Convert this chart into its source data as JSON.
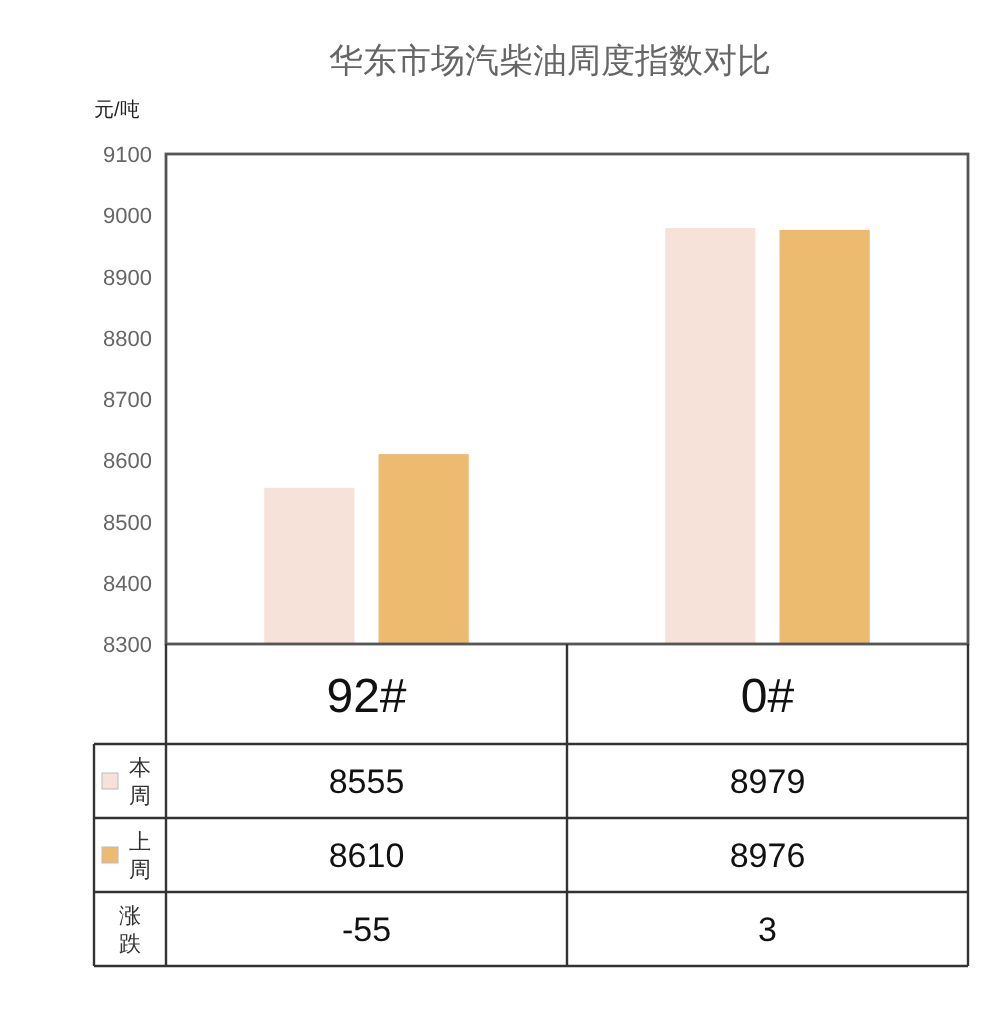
{
  "chart_data": {
    "type": "bar",
    "title": "华东市场汽柴油周度指数对比",
    "ylabel": "元/吨",
    "categories": [
      "92#",
      "0#"
    ],
    "series": [
      {
        "name": "本周",
        "color": "#f7e2da",
        "values": [
          8555,
          8979
        ]
      },
      {
        "name": "上周",
        "color": "#ecbb70",
        "values": [
          8610,
          8976
        ]
      }
    ],
    "ylim": [
      8300,
      9100
    ],
    "yticks": [
      8300,
      8400,
      8500,
      8600,
      8700,
      8800,
      8900,
      9000,
      9100
    ],
    "data_labels": true,
    "legend": "bottom left",
    "annotations": [
      "涨跌",
      "-55",
      "3"
    ]
  }
}
